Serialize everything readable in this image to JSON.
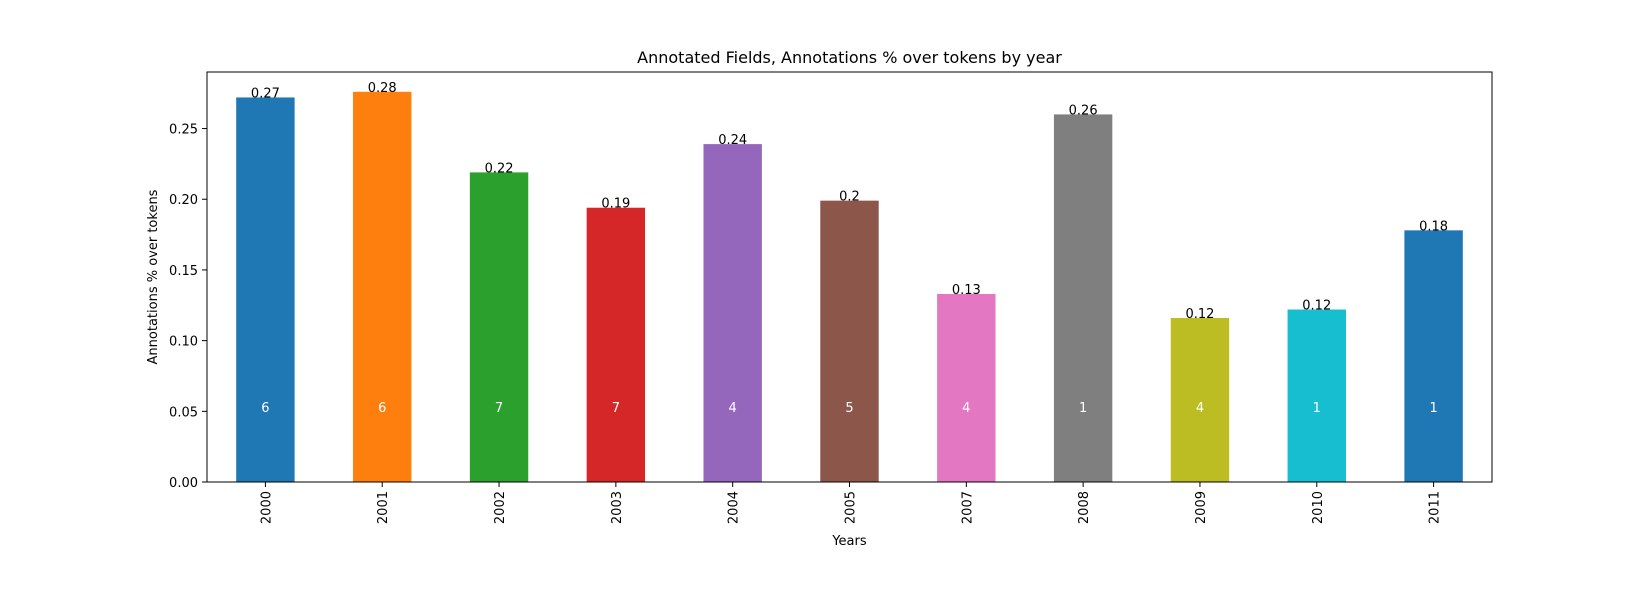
{
  "chart_data": {
    "type": "bar",
    "title": "Annotated Fields, Annotations % over tokens by year",
    "xlabel": "Years",
    "ylabel": "Annotations % over tokens",
    "ylim": [
      0,
      0.29
    ],
    "yticks": [
      "0.00",
      "0.05",
      "0.10",
      "0.15",
      "0.20",
      "0.25"
    ],
    "categories": [
      "2000",
      "2001",
      "2002",
      "2003",
      "2004",
      "2005",
      "2007",
      "2008",
      "2009",
      "2010",
      "2011"
    ],
    "values": [
      0.272,
      0.276,
      0.219,
      0.194,
      0.239,
      0.199,
      0.133,
      0.26,
      0.116,
      0.122,
      0.178
    ],
    "value_labels": [
      "0.27",
      "0.28",
      "0.22",
      "0.19",
      "0.24",
      "0.2",
      "0.13",
      "0.26",
      "0.12",
      "0.12",
      "0.18"
    ],
    "count_labels": [
      "6",
      "6",
      "7",
      "7",
      "4",
      "5",
      "4",
      "1",
      "4",
      "1",
      "1"
    ],
    "colors": [
      "#1f77b4",
      "#ff7f0e",
      "#2ca02c",
      "#d62728",
      "#9467bd",
      "#8c564b",
      "#e377c2",
      "#7f7f7f",
      "#bcbd22",
      "#17becf",
      "#1f77b4"
    ],
    "grid": false,
    "legend": "none"
  }
}
